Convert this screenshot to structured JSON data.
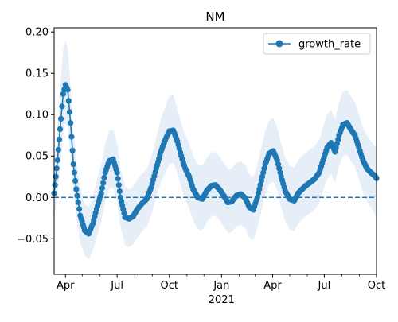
{
  "chart_data": {
    "type": "line",
    "title": "NM",
    "xlabel": "",
    "ylabel": "",
    "xlim": [
      "2020-03-12",
      "2021-10-01"
    ],
    "ylim": [
      -0.093,
      0.205
    ],
    "x_tick_labels": [
      {
        "date": "2020-04-01",
        "label": "Apr"
      },
      {
        "date": "2020-07-01",
        "label": "Jul"
      },
      {
        "date": "2020-10-01",
        "label": "Oct"
      },
      {
        "date": "2021-01-01",
        "label": "Jan"
      },
      {
        "date": "2021-04-01",
        "label": "Apr"
      },
      {
        "date": "2021-07-01",
        "label": "Jul"
      },
      {
        "date": "2021-10-01",
        "label": "Oct"
      }
    ],
    "x_tick_year_label": {
      "date": "2021-01-01",
      "label": "2021"
    },
    "y_ticks": [
      -0.05,
      0.0,
      0.05,
      0.1,
      0.15,
      0.2
    ],
    "y_tick_labels": [
      "−0.05",
      "0.00",
      "0.05",
      "0.10",
      "0.15",
      "0.20"
    ],
    "legend": {
      "position": "upper right",
      "entries": [
        "growth_rate"
      ]
    },
    "reference_line": {
      "y": 0.0,
      "style": "dashed"
    },
    "colors": {
      "line": "#1f77b4",
      "band": "#e6eff8",
      "axis": "#000000"
    },
    "series": [
      {
        "name": "growth_rate",
        "marker": "circle",
        "x": [
          "2020-03-12",
          "2020-03-18",
          "2020-03-24",
          "2020-03-28",
          "2020-04-01",
          "2020-04-05",
          "2020-04-10",
          "2020-04-15",
          "2020-04-20",
          "2020-04-27",
          "2020-05-05",
          "2020-05-12",
          "2020-05-19",
          "2020-05-26",
          "2020-06-03",
          "2020-06-10",
          "2020-06-17",
          "2020-06-24",
          "2020-07-01",
          "2020-07-07",
          "2020-07-15",
          "2020-07-22",
          "2020-07-29",
          "2020-08-06",
          "2020-08-13",
          "2020-08-22",
          "2020-08-30",
          "2020-09-08",
          "2020-09-16",
          "2020-09-24",
          "2020-10-01",
          "2020-10-08",
          "2020-10-15",
          "2020-10-22",
          "2020-10-29",
          "2020-11-05",
          "2020-11-12",
          "2020-11-20",
          "2020-11-28",
          "2020-12-06",
          "2020-12-14",
          "2020-12-21",
          "2020-12-29",
          "2021-01-05",
          "2021-01-12",
          "2021-01-19",
          "2021-01-27",
          "2021-02-04",
          "2021-02-12",
          "2021-02-19",
          "2021-02-26",
          "2021-03-05",
          "2021-03-12",
          "2021-03-19",
          "2021-03-26",
          "2021-04-02",
          "2021-04-09",
          "2021-04-16",
          "2021-04-23",
          "2021-05-01",
          "2021-05-09",
          "2021-05-16",
          "2021-05-23",
          "2021-05-31",
          "2021-06-08",
          "2021-06-15",
          "2021-06-22",
          "2021-06-29",
          "2021-07-06",
          "2021-07-13",
          "2021-07-20",
          "2021-07-27",
          "2021-08-03",
          "2021-08-10",
          "2021-08-17",
          "2021-08-24",
          "2021-08-31",
          "2021-09-07",
          "2021-09-14",
          "2021-09-21",
          "2021-09-28",
          "2021-10-01"
        ],
        "values": [
          0.005,
          0.045,
          0.095,
          0.125,
          0.136,
          0.13,
          0.09,
          0.04,
          0.01,
          -0.022,
          -0.04,
          -0.044,
          -0.032,
          -0.014,
          0.005,
          0.03,
          0.044,
          0.046,
          0.03,
          0.0,
          -0.024,
          -0.026,
          -0.023,
          -0.014,
          -0.008,
          -0.002,
          0.012,
          0.035,
          0.055,
          0.07,
          0.08,
          0.081,
          0.068,
          0.05,
          0.035,
          0.025,
          0.01,
          0.0,
          -0.002,
          0.008,
          0.014,
          0.015,
          0.009,
          0.002,
          -0.006,
          -0.005,
          0.002,
          0.004,
          -0.001,
          -0.012,
          -0.015,
          0.0,
          0.02,
          0.04,
          0.053,
          0.056,
          0.045,
          0.025,
          0.008,
          -0.002,
          -0.004,
          0.005,
          0.01,
          0.015,
          0.019,
          0.023,
          0.03,
          0.045,
          0.06,
          0.066,
          0.055,
          0.075,
          0.088,
          0.09,
          0.082,
          0.075,
          0.06,
          0.045,
          0.035,
          0.03,
          0.026,
          0.023
        ],
        "band_lower": [
          -0.025,
          0.005,
          0.045,
          0.075,
          0.09,
          0.085,
          0.05,
          0.005,
          -0.025,
          -0.055,
          -0.07,
          -0.075,
          -0.065,
          -0.048,
          -0.03,
          -0.005,
          0.01,
          0.012,
          -0.005,
          -0.035,
          -0.058,
          -0.06,
          -0.057,
          -0.048,
          -0.042,
          -0.036,
          -0.022,
          0.0,
          0.018,
          0.03,
          0.04,
          0.042,
          0.03,
          0.012,
          -0.003,
          -0.013,
          -0.028,
          -0.038,
          -0.04,
          -0.03,
          -0.023,
          -0.022,
          -0.028,
          -0.035,
          -0.043,
          -0.042,
          -0.035,
          -0.033,
          -0.038,
          -0.049,
          -0.052,
          -0.037,
          -0.017,
          0.003,
          0.016,
          0.019,
          0.008,
          -0.012,
          -0.029,
          -0.039,
          -0.041,
          -0.032,
          -0.027,
          -0.022,
          -0.018,
          -0.014,
          -0.007,
          0.008,
          0.022,
          0.028,
          0.018,
          0.038,
          0.05,
          0.052,
          0.044,
          0.037,
          0.022,
          0.006,
          -0.005,
          -0.012,
          -0.02,
          -0.028
        ],
        "band_upper": [
          0.035,
          0.085,
          0.145,
          0.18,
          0.19,
          0.18,
          0.135,
          0.08,
          0.045,
          0.012,
          -0.008,
          -0.012,
          0.0,
          0.02,
          0.04,
          0.066,
          0.08,
          0.082,
          0.066,
          0.036,
          0.012,
          0.01,
          0.013,
          0.022,
          0.028,
          0.034,
          0.048,
          0.072,
          0.094,
          0.11,
          0.122,
          0.124,
          0.108,
          0.09,
          0.075,
          0.065,
          0.05,
          0.04,
          0.038,
          0.048,
          0.054,
          0.055,
          0.049,
          0.042,
          0.034,
          0.035,
          0.042,
          0.044,
          0.039,
          0.028,
          0.025,
          0.04,
          0.06,
          0.08,
          0.093,
          0.096,
          0.085,
          0.065,
          0.048,
          0.038,
          0.036,
          0.045,
          0.05,
          0.055,
          0.059,
          0.063,
          0.07,
          0.085,
          0.1,
          0.106,
          0.095,
          0.115,
          0.128,
          0.13,
          0.122,
          0.115,
          0.1,
          0.085,
          0.075,
          0.068,
          0.062,
          0.058
        ]
      }
    ]
  }
}
